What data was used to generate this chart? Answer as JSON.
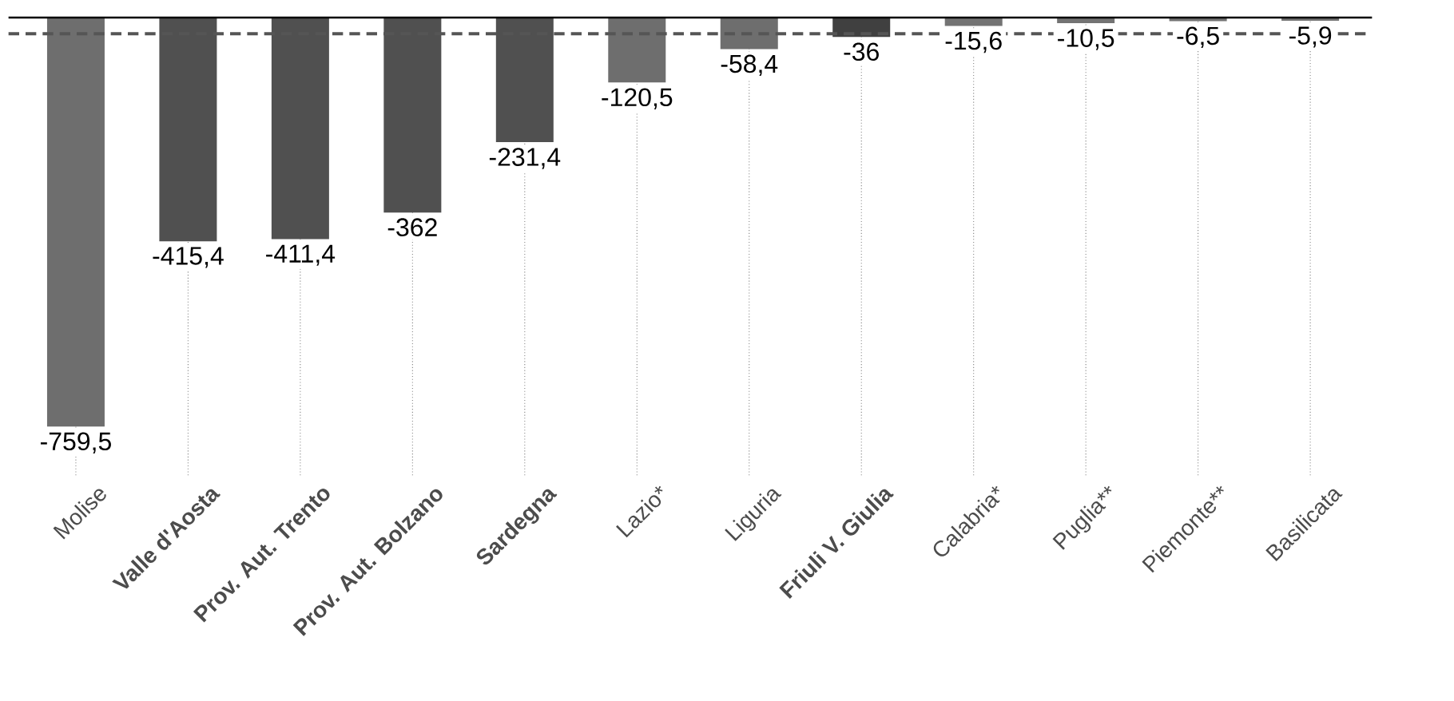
{
  "chart_data": {
    "type": "bar",
    "categories": [
      "Molise",
      "**Valle d'Aosta**",
      "**Prov. Aut. Trento**",
      "**Prov. Aut. Bolzano**",
      "**Sardegna**",
      "Lazio*",
      "Liguria",
      "**Friuli V. Giulia**",
      "Calabria*",
      "Puglia**",
      "Piemonte**",
      "Basilicata"
    ],
    "values": [
      -759.5,
      -415.4,
      -411.4,
      -362,
      -231.4,
      -120.5,
      -58.4,
      -36,
      -15.6,
      -10.5,
      -6.5,
      -5.9
    ],
    "value_labels": [
      "-759,5",
      "-415,4",
      "-411,4",
      "-362",
      "-231,4",
      "-120,5",
      "-58,4",
      "-36",
      "-15,6",
      "-10,5",
      "-6,5",
      "-5,9"
    ],
    "colors": [
      "#6e6e6e",
      "#505050",
      "#505050",
      "#505050",
      "#505050",
      "#6e6e6e",
      "#6e6e6e",
      "#404040",
      "#737373",
      "#737373",
      "#737373",
      "#737373"
    ],
    "ylim": [
      -850,
      0
    ],
    "ref_lines": [
      {
        "axis": "y",
        "value": -30,
        "color": "#555555",
        "line_style": "dashed"
      }
    ],
    "grid": "x",
    "tick_labels": "x"
  }
}
